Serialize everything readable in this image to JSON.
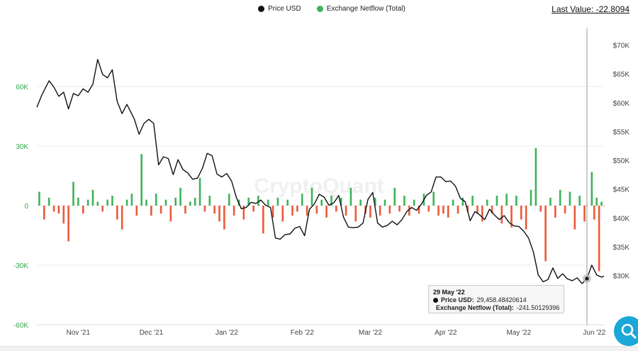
{
  "legend": {
    "price_label": "Price USD",
    "netflow_label": "Exchange Netflow (Total)",
    "price_color": "#111111",
    "inflow_color": "#3cb35a",
    "outflow_color": "#ea5a3a"
  },
  "last_value": "Last Value: -22.8094",
  "watermark": "CryptoQuant",
  "tooltip": {
    "date": "29 May '22",
    "price_label": "Price USD:",
    "price_value": "29,458.48420614",
    "netflow_label": "Exchange Netflow (Total):",
    "netflow_value": "-241.50129396"
  },
  "icons": {
    "search": "search-icon"
  },
  "chart_data": {
    "type": "bar+line",
    "x_ticks": [
      "Nov '21",
      "Dec '21",
      "Jan '22",
      "Feb '22",
      "Mar '22",
      "Apr '22",
      "May '22",
      "Jun '22"
    ],
    "x_range": [
      "2021-10-15",
      "2022-06-05"
    ],
    "left_axis": {
      "ticks": [
        "60K",
        "30K",
        "0",
        "-30K",
        "-60K"
      ],
      "range": [
        -60000,
        60000
      ]
    },
    "right_axis": {
      "ticks": [
        "$70K",
        "$65K",
        "$60K",
        "$55K",
        "$50K",
        "$45K",
        "$40K",
        "$35K",
        "$30K"
      ],
      "range": [
        25000,
        73000
      ]
    },
    "price_series": {
      "name": "Price USD",
      "points": [
        [
          "2021-10-15",
          59200
        ],
        [
          "2021-10-17",
          61300
        ],
        [
          "2021-10-20",
          63800
        ],
        [
          "2021-10-22",
          62700
        ],
        [
          "2021-10-24",
          61100
        ],
        [
          "2021-10-26",
          61800
        ],
        [
          "2021-10-28",
          58900
        ],
        [
          "2021-10-30",
          61600
        ],
        [
          "2021-11-01",
          61200
        ],
        [
          "2021-11-03",
          62400
        ],
        [
          "2021-11-05",
          61800
        ],
        [
          "2021-11-07",
          63200
        ],
        [
          "2021-11-09",
          67500
        ],
        [
          "2021-11-11",
          64900
        ],
        [
          "2021-11-13",
          64300
        ],
        [
          "2021-11-15",
          65700
        ],
        [
          "2021-11-17",
          60200
        ],
        [
          "2021-11-19",
          58100
        ],
        [
          "2021-11-21",
          59700
        ],
        [
          "2021-11-24",
          57200
        ],
        [
          "2021-11-26",
          54500
        ],
        [
          "2021-11-28",
          56400
        ],
        [
          "2021-11-30",
          57100
        ],
        [
          "2021-12-02",
          56400
        ],
        [
          "2021-12-04",
          49200
        ],
        [
          "2021-12-06",
          50600
        ],
        [
          "2021-12-08",
          50300
        ],
        [
          "2021-12-10",
          47500
        ],
        [
          "2021-12-12",
          50100
        ],
        [
          "2021-12-14",
          48400
        ],
        [
          "2021-12-16",
          47800
        ],
        [
          "2021-12-18",
          46700
        ],
        [
          "2021-12-20",
          46900
        ],
        [
          "2021-12-22",
          48600
        ],
        [
          "2021-12-24",
          51200
        ],
        [
          "2021-12-26",
          50800
        ],
        [
          "2021-12-28",
          47600
        ],
        [
          "2021-12-30",
          47100
        ],
        [
          "2022-01-01",
          47700
        ],
        [
          "2022-01-03",
          46400
        ],
        [
          "2022-01-05",
          43500
        ],
        [
          "2022-01-07",
          41600
        ],
        [
          "2022-01-09",
          41800
        ],
        [
          "2022-01-11",
          42700
        ],
        [
          "2022-01-13",
          42500
        ],
        [
          "2022-01-15",
          43100
        ],
        [
          "2022-01-17",
          42200
        ],
        [
          "2022-01-19",
          41800
        ],
        [
          "2022-01-21",
          36500
        ],
        [
          "2022-01-23",
          36300
        ],
        [
          "2022-01-25",
          37100
        ],
        [
          "2022-01-27",
          37200
        ],
        [
          "2022-01-29",
          38200
        ],
        [
          "2022-01-31",
          38500
        ],
        [
          "2022-02-02",
          36900
        ],
        [
          "2022-02-04",
          41500
        ],
        [
          "2022-02-06",
          42400
        ],
        [
          "2022-02-08",
          44100
        ],
        [
          "2022-02-10",
          43600
        ],
        [
          "2022-02-12",
          42200
        ],
        [
          "2022-02-14",
          42600
        ],
        [
          "2022-02-16",
          43900
        ],
        [
          "2022-02-18",
          40100
        ],
        [
          "2022-02-20",
          38400
        ],
        [
          "2022-02-22",
          38300
        ],
        [
          "2022-02-24",
          38400
        ],
        [
          "2022-02-26",
          39100
        ],
        [
          "2022-02-28",
          43200
        ],
        [
          "2022-03-02",
          44400
        ],
        [
          "2022-03-04",
          39100
        ],
        [
          "2022-03-06",
          38400
        ],
        [
          "2022-03-08",
          38700
        ],
        [
          "2022-03-10",
          39400
        ],
        [
          "2022-03-12",
          38800
        ],
        [
          "2022-03-14",
          39700
        ],
        [
          "2022-03-16",
          41100
        ],
        [
          "2022-03-18",
          41800
        ],
        [
          "2022-03-20",
          41300
        ],
        [
          "2022-03-22",
          42400
        ],
        [
          "2022-03-24",
          43900
        ],
        [
          "2022-03-26",
          44500
        ],
        [
          "2022-03-28",
          47100
        ],
        [
          "2022-03-30",
          47100
        ],
        [
          "2022-04-01",
          46300
        ],
        [
          "2022-04-03",
          46400
        ],
        [
          "2022-04-05",
          45500
        ],
        [
          "2022-04-07",
          43400
        ],
        [
          "2022-04-09",
          42800
        ],
        [
          "2022-04-11",
          39500
        ],
        [
          "2022-04-13",
          41100
        ],
        [
          "2022-04-15",
          40500
        ],
        [
          "2022-04-17",
          39700
        ],
        [
          "2022-04-19",
          41500
        ],
        [
          "2022-04-21",
          40500
        ],
        [
          "2022-04-23",
          39700
        ],
        [
          "2022-04-25",
          40400
        ],
        [
          "2022-04-27",
          39200
        ],
        [
          "2022-04-29",
          38600
        ],
        [
          "2022-05-01",
          38500
        ],
        [
          "2022-05-03",
          37700
        ],
        [
          "2022-05-05",
          36500
        ],
        [
          "2022-05-07",
          34100
        ],
        [
          "2022-05-09",
          30100
        ],
        [
          "2022-05-11",
          28900
        ],
        [
          "2022-05-13",
          29300
        ],
        [
          "2022-05-15",
          31300
        ],
        [
          "2022-05-17",
          29500
        ],
        [
          "2022-05-19",
          30300
        ],
        [
          "2022-05-21",
          29400
        ],
        [
          "2022-05-23",
          29100
        ],
        [
          "2022-05-25",
          29600
        ],
        [
          "2022-05-27",
          28600
        ],
        [
          "2022-05-29",
          29458
        ],
        [
          "2022-05-31",
          31800
        ],
        [
          "2022-06-02",
          30100
        ],
        [
          "2022-06-04",
          29700
        ],
        [
          "2022-06-05",
          29900
        ]
      ]
    },
    "netflow_series": {
      "name": "Exchange Netflow (Total)",
      "points": [
        [
          "2021-10-16",
          7000
        ],
        [
          "2021-10-18",
          -7000
        ],
        [
          "2021-10-20",
          4000
        ],
        [
          "2021-10-22",
          -3000
        ],
        [
          "2021-10-24",
          -4000
        ],
        [
          "2021-10-26",
          -9000
        ],
        [
          "2021-10-28",
          -18000
        ],
        [
          "2021-10-30",
          12000
        ],
        [
          "2021-11-01",
          4000
        ],
        [
          "2021-11-03",
          -4000
        ],
        [
          "2021-11-05",
          3000
        ],
        [
          "2021-11-07",
          8000
        ],
        [
          "2021-11-09",
          2000
        ],
        [
          "2021-11-11",
          -3000
        ],
        [
          "2021-11-13",
          3000
        ],
        [
          "2021-11-15",
          5000
        ],
        [
          "2021-11-17",
          -7000
        ],
        [
          "2021-11-19",
          -12000
        ],
        [
          "2021-11-21",
          3000
        ],
        [
          "2021-11-23",
          6000
        ],
        [
          "2021-11-25",
          -5000
        ],
        [
          "2021-11-27",
          26000
        ],
        [
          "2021-11-29",
          3000
        ],
        [
          "2021-12-01",
          -5000
        ],
        [
          "2021-12-03",
          6000
        ],
        [
          "2021-12-05",
          -4000
        ],
        [
          "2021-12-07",
          3000
        ],
        [
          "2021-12-09",
          -8000
        ],
        [
          "2021-12-11",
          4000
        ],
        [
          "2021-12-13",
          9000
        ],
        [
          "2021-12-15",
          -4000
        ],
        [
          "2021-12-17",
          2000
        ],
        [
          "2021-12-19",
          4000
        ],
        [
          "2021-12-21",
          14000
        ],
        [
          "2021-12-23",
          -3000
        ],
        [
          "2021-12-25",
          5000
        ],
        [
          "2021-12-27",
          -4000
        ],
        [
          "2021-12-29",
          -8000
        ],
        [
          "2021-12-31",
          -12000
        ],
        [
          "2022-01-02",
          6000
        ],
        [
          "2022-01-04",
          -5000
        ],
        [
          "2022-01-06",
          3000
        ],
        [
          "2022-01-08",
          -7000
        ],
        [
          "2022-01-10",
          4000
        ],
        [
          "2022-01-12",
          -3000
        ],
        [
          "2022-01-14",
          5000
        ],
        [
          "2022-01-16",
          -14000
        ],
        [
          "2022-01-18",
          3000
        ],
        [
          "2022-01-20",
          -6000
        ],
        [
          "2022-01-22",
          4000
        ],
        [
          "2022-01-24",
          -8000
        ],
        [
          "2022-01-26",
          3000
        ],
        [
          "2022-01-28",
          -5000
        ],
        [
          "2022-01-30",
          -3000
        ],
        [
          "2022-02-01",
          6000
        ],
        [
          "2022-02-03",
          -5000
        ],
        [
          "2022-02-05",
          9000
        ],
        [
          "2022-02-07",
          -4000
        ],
        [
          "2022-02-09",
          3000
        ],
        [
          "2022-02-11",
          -6000
        ],
        [
          "2022-02-13",
          5000
        ],
        [
          "2022-02-15",
          -3000
        ],
        [
          "2022-02-17",
          4000
        ],
        [
          "2022-02-19",
          -5000
        ],
        [
          "2022-02-21",
          9000
        ],
        [
          "2022-02-23",
          -8000
        ],
        [
          "2022-02-25",
          3000
        ],
        [
          "2022-02-27",
          -4000
        ],
        [
          "2022-03-01",
          -6000
        ],
        [
          "2022-03-03",
          4000
        ],
        [
          "2022-03-05",
          -5000
        ],
        [
          "2022-03-07",
          3000
        ],
        [
          "2022-03-09",
          -4000
        ],
        [
          "2022-03-11",
          9000
        ],
        [
          "2022-03-13",
          -3000
        ],
        [
          "2022-03-15",
          5000
        ],
        [
          "2022-03-17",
          -5000
        ],
        [
          "2022-03-19",
          3000
        ],
        [
          "2022-03-21",
          -4000
        ],
        [
          "2022-03-23",
          6000
        ],
        [
          "2022-03-25",
          -3000
        ],
        [
          "2022-03-27",
          7000
        ],
        [
          "2022-03-29",
          -5000
        ],
        [
          "2022-03-31",
          -4000
        ],
        [
          "2022-04-02",
          -6000
        ],
        [
          "2022-04-04",
          3000
        ],
        [
          "2022-04-06",
          -4000
        ],
        [
          "2022-04-08",
          4000
        ],
        [
          "2022-04-10",
          -3000
        ],
        [
          "2022-04-12",
          5000
        ],
        [
          "2022-04-14",
          -4000
        ],
        [
          "2022-04-16",
          -8000
        ],
        [
          "2022-04-18",
          3000
        ],
        [
          "2022-04-20",
          -4000
        ],
        [
          "2022-04-22",
          5000
        ],
        [
          "2022-04-24",
          -9000
        ],
        [
          "2022-04-26",
          6000
        ],
        [
          "2022-04-28",
          -11000
        ],
        [
          "2022-04-30",
          5000
        ],
        [
          "2022-05-02",
          -7000
        ],
        [
          "2022-05-04",
          -12000
        ],
        [
          "2022-05-06",
          8000
        ],
        [
          "2022-05-08",
          29000
        ],
        [
          "2022-05-10",
          -3000
        ],
        [
          "2022-05-12",
          -28000
        ],
        [
          "2022-05-14",
          4000
        ],
        [
          "2022-05-16",
          -6000
        ],
        [
          "2022-05-18",
          8000
        ],
        [
          "2022-05-20",
          -4000
        ],
        [
          "2022-05-22",
          7000
        ],
        [
          "2022-05-24",
          -12000
        ],
        [
          "2022-05-26",
          5000
        ],
        [
          "2022-05-28",
          -8000
        ],
        [
          "2022-05-29",
          -241
        ],
        [
          "2022-05-31",
          17000
        ],
        [
          "2022-06-01",
          -7000
        ],
        [
          "2022-06-02",
          4000
        ],
        [
          "2022-06-03",
          -33000
        ],
        [
          "2022-06-04",
          2000
        ],
        [
          "2022-06-05",
          -23
        ]
      ]
    },
    "highlight_date": "2022-05-29"
  }
}
